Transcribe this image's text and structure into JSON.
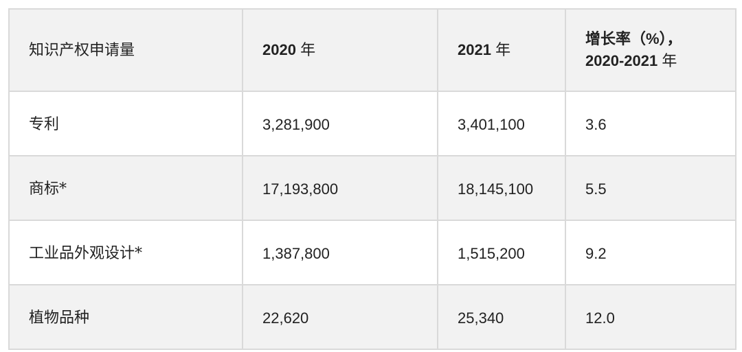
{
  "table": {
    "header": {
      "col0": "知识产权申请量",
      "col1_num": "2020",
      "col1_unit": "年",
      "col2_num": "2021",
      "col2_unit": "年",
      "col3_line1": "增长率（%），",
      "col3_line2_num": "2020-2021",
      "col3_line2_unit": "年"
    },
    "rows": [
      {
        "label": "专利",
        "y2020": "3,281,900",
        "y2021": "3,401,100",
        "growth": "3.6"
      },
      {
        "label": "商标*",
        "y2020": "17,193,800",
        "y2021": "18,145,100",
        "growth": "5.5"
      },
      {
        "label": "工业品外观设计*",
        "y2020": "1,387,800",
        "y2021": "1,515,200",
        "growth": "9.2"
      },
      {
        "label": "植物品种",
        "y2020": "22,620",
        "y2021": "25,340",
        "growth": "12.0"
      }
    ]
  }
}
